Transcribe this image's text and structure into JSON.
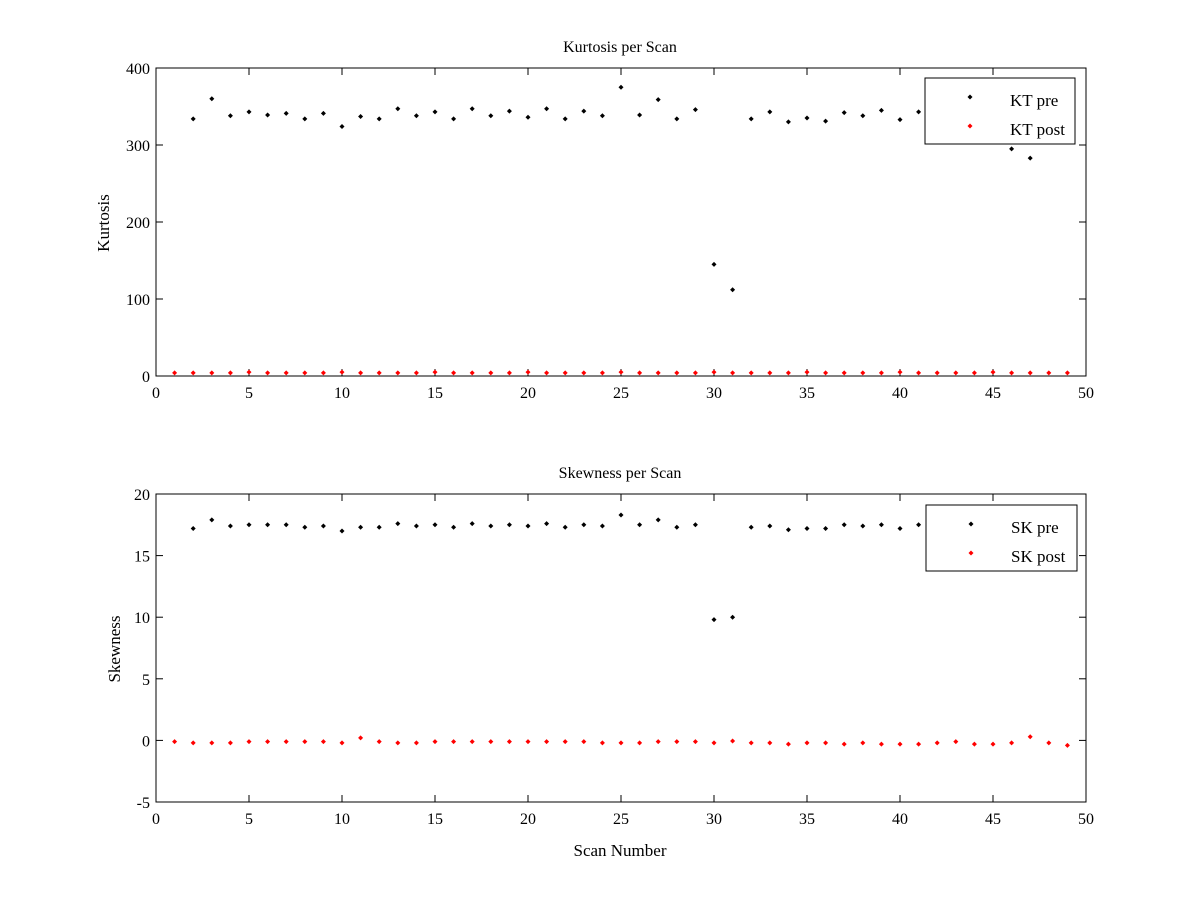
{
  "chart_data": [
    {
      "type": "scatter",
      "title": "Kurtosis per Scan",
      "xlabel": "",
      "ylabel": "Kurtosis",
      "xlim": [
        0,
        50
      ],
      "ylim": [
        0,
        400
      ],
      "xticks": [
        0,
        5,
        10,
        15,
        20,
        25,
        30,
        35,
        40,
        45,
        50
      ],
      "yticks": [
        0,
        100,
        200,
        300,
        400
      ],
      "grid": false,
      "legend_position": "top-right",
      "series": [
        {
          "name": "KT pre",
          "color": "#000000",
          "x": [
            2,
            3,
            4,
            5,
            6,
            7,
            8,
            9,
            10,
            11,
            12,
            13,
            14,
            15,
            16,
            17,
            18,
            19,
            20,
            21,
            22,
            23,
            24,
            25,
            26,
            27,
            28,
            29,
            30,
            31,
            32,
            33,
            34,
            35,
            36,
            37,
            38,
            39,
            40,
            41,
            42,
            43,
            44,
            45,
            46,
            47
          ],
          "y": [
            334,
            360,
            338,
            343,
            339,
            341,
            334,
            341,
            324,
            337,
            334,
            347,
            338,
            343,
            334,
            347,
            338,
            344,
            336,
            347,
            334,
            344,
            338,
            375,
            339,
            359,
            334,
            346,
            145,
            112,
            334,
            343,
            330,
            335,
            331,
            342,
            338,
            345,
            333,
            343,
            335,
            337,
            318,
            310,
            295,
            283
          ]
        },
        {
          "name": "KT post",
          "color": "#ff0000",
          "x": [
            1,
            2,
            3,
            4,
            5,
            6,
            7,
            8,
            9,
            10,
            11,
            12,
            13,
            14,
            15,
            16,
            17,
            18,
            19,
            20,
            21,
            22,
            23,
            24,
            25,
            26,
            27,
            28,
            29,
            30,
            31,
            32,
            33,
            34,
            35,
            36,
            37,
            38,
            39,
            40,
            41,
            42,
            43,
            44,
            45,
            46,
            47,
            48,
            49
          ],
          "y": [
            4,
            4,
            4,
            4,
            5,
            4,
            4,
            4,
            4,
            5,
            4,
            4,
            4,
            4,
            5,
            4,
            4,
            4,
            4,
            5,
            4,
            4,
            4,
            4,
            5,
            4,
            4,
            4,
            4,
            5,
            4,
            4,
            4,
            4,
            5,
            4,
            4,
            4,
            4,
            5,
            4,
            4,
            4,
            4,
            5,
            4,
            4,
            4,
            4
          ]
        }
      ]
    },
    {
      "type": "scatter",
      "title": "Skewness per Scan",
      "xlabel": "Scan Number",
      "ylabel": "Skewness",
      "xlim": [
        0,
        50
      ],
      "ylim": [
        -5,
        20
      ],
      "xticks": [
        0,
        5,
        10,
        15,
        20,
        25,
        30,
        35,
        40,
        45,
        50
      ],
      "yticks": [
        -5,
        0,
        5,
        10,
        15,
        20
      ],
      "grid": false,
      "legend_position": "top-right",
      "series": [
        {
          "name": "SK pre",
          "color": "#000000",
          "x": [
            2,
            3,
            4,
            5,
            6,
            7,
            8,
            9,
            10,
            11,
            12,
            13,
            14,
            15,
            16,
            17,
            18,
            19,
            20,
            21,
            22,
            23,
            24,
            25,
            26,
            27,
            28,
            29,
            30,
            31,
            32,
            33,
            34,
            35,
            36,
            37,
            38,
            39,
            40,
            41,
            42,
            43,
            44,
            45,
            46,
            47
          ],
          "y": [
            17.2,
            17.9,
            17.4,
            17.5,
            17.5,
            17.5,
            17.3,
            17.4,
            17.0,
            17.3,
            17.3,
            17.6,
            17.4,
            17.5,
            17.3,
            17.6,
            17.4,
            17.5,
            17.4,
            17.6,
            17.3,
            17.5,
            17.4,
            18.3,
            17.5,
            17.9,
            17.3,
            17.5,
            9.8,
            10.0,
            17.3,
            17.4,
            17.1,
            17.2,
            17.2,
            17.5,
            17.4,
            17.5,
            17.2,
            17.5,
            17.3,
            17.4,
            17.2,
            17.0,
            16.8,
            16.6
          ]
        },
        {
          "name": "SK post",
          "color": "#ff0000",
          "x": [
            1,
            2,
            3,
            4,
            5,
            6,
            7,
            8,
            9,
            10,
            11,
            12,
            13,
            14,
            15,
            16,
            17,
            18,
            19,
            20,
            21,
            22,
            23,
            24,
            25,
            26,
            27,
            28,
            29,
            30,
            31,
            32,
            33,
            34,
            35,
            36,
            37,
            38,
            39,
            40,
            41,
            42,
            43,
            44,
            45,
            46,
            47,
            48,
            49
          ],
          "y": [
            -0.1,
            -0.2,
            -0.2,
            -0.2,
            -0.1,
            -0.1,
            -0.1,
            -0.1,
            -0.1,
            -0.2,
            0.2,
            -0.1,
            -0.2,
            -0.2,
            -0.1,
            -0.1,
            -0.1,
            -0.1,
            -0.1,
            -0.1,
            -0.1,
            -0.1,
            -0.1,
            -0.2,
            -0.2,
            -0.2,
            -0.1,
            -0.1,
            -0.1,
            -0.2,
            -0.05,
            -0.2,
            -0.2,
            -0.3,
            -0.2,
            -0.2,
            -0.3,
            -0.2,
            -0.3,
            -0.3,
            -0.3,
            -0.2,
            -0.1,
            -0.3,
            -0.3,
            -0.2,
            0.3,
            -0.2,
            -0.4
          ]
        }
      ]
    }
  ]
}
